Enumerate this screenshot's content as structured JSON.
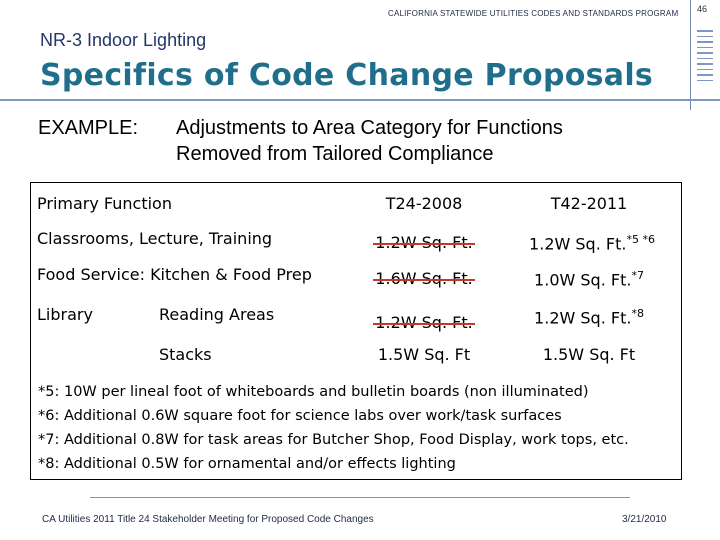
{
  "header": {
    "program": "CALIFORNIA STATEWIDE UTILITIES CODES AND STANDARDS PROGRAM",
    "page_number": "46"
  },
  "subtitle": "NR-3 Indoor Lighting",
  "title": "Specifics of Code Change Proposals",
  "example": {
    "label": "EXAMPLE:",
    "line1": "Adjustments to Area Category for Functions",
    "line2": "Removed from Tailored Compliance"
  },
  "table": {
    "headers": {
      "primary_function": "Primary Function",
      "t24_2008": "T24-2008",
      "t42_2011": "T42-2011"
    },
    "rows": [
      {
        "function": "Classrooms, Lecture, Training",
        "old": "1.2W Sq. Ft.",
        "old_struck": true,
        "new": "1.2W Sq. Ft.",
        "new_note": "*5 *6"
      },
      {
        "function": "Food Service: Kitchen & Food Prep",
        "old": "1.6W Sq. Ft.",
        "old_struck": true,
        "new": "1.0W Sq. Ft.",
        "new_note": "*7"
      },
      {
        "group": "Library",
        "function": "Reading Areas",
        "old": "1.2W Sq. Ft.",
        "old_struck": true,
        "new": "1.2W Sq. Ft.",
        "new_note": "*8"
      },
      {
        "function": "Stacks",
        "old": "1.5W Sq. Ft",
        "old_struck": false,
        "new": "1.5W Sq. Ft",
        "new_note": ""
      }
    ]
  },
  "notes": [
    "*5: 10W per lineal foot of whiteboards and bulletin boards (non illuminated)",
    "*6: Additional 0.6W square foot for science labs over work/task surfaces",
    "*7: Additional 0.8W for task areas for Butcher Shop, Food Display, work tops, etc.",
    "*8: Additional 0.5W for ornamental and/or effects lighting"
  ],
  "footer": {
    "left": "CA Utilities 2011 Title 24 Stakeholder Meeting for Proposed Code Changes",
    "right": "3/21/2010"
  },
  "colors": {
    "title": "#1f6f8c",
    "subtitle": "#24356b",
    "rule": "#7f96c2",
    "strike": "#c0392b"
  }
}
